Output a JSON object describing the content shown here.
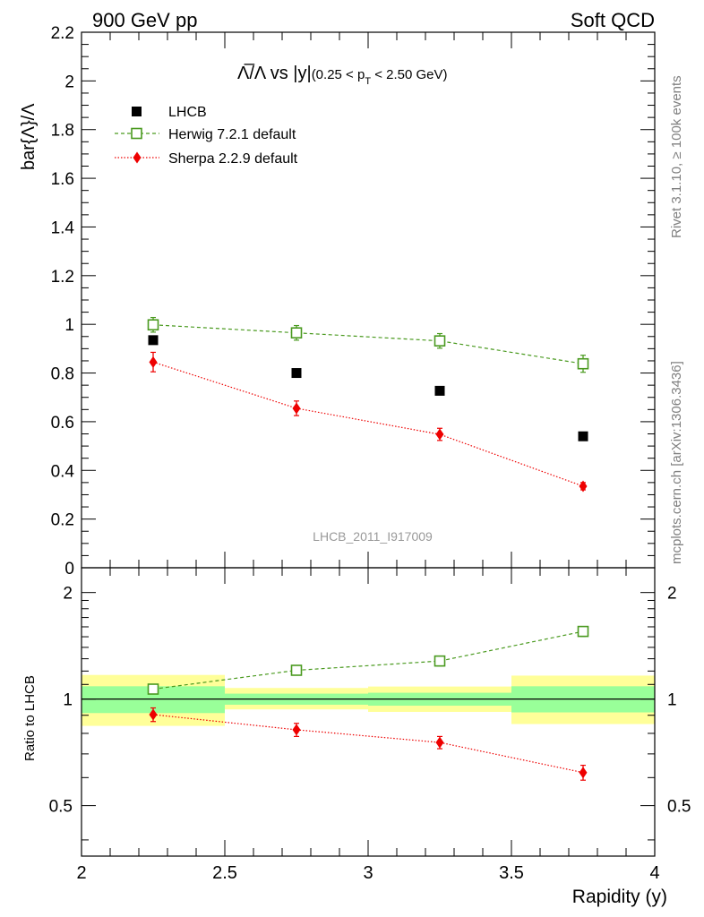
{
  "header": {
    "left": "900 GeV pp",
    "right": "Soft QCD"
  },
  "side_text": {
    "rivet": "Rivet 3.1.10, ≥ 100k events",
    "mcplots": "mcplots.cern.ch [arXiv:1306.3436]"
  },
  "colors": {
    "lhcb": "#000000",
    "herwig": "#4a9a1f",
    "sherpa": "#ee0000",
    "band_outer": "#ffff99",
    "band_inner": "#99ff99"
  },
  "chart_data": [
    {
      "type": "scatter",
      "title": "Λ̅/Λ vs |y|(0.25 < p_T < 2.50 GeV)",
      "title_parts": {
        "main": "Λ̅/Λ vs |y|",
        "cut_open": "(0.25 < p",
        "cut_sub": "T",
        "cut_close": " < 2.50 GeV)"
      },
      "ylabel": "bar{Λ}/Λ",
      "watermark": "LHCB_2011_I917009",
      "xlim": [
        2,
        4
      ],
      "ylim": [
        0,
        2.2
      ],
      "yticks": [
        0,
        0.2,
        0.4,
        0.6,
        0.8,
        1,
        1.2,
        1.4,
        1.6,
        1.8,
        2,
        2.2
      ],
      "ytick_labels": [
        "0",
        "0.2",
        "0.4",
        "0.6",
        "0.8",
        "1",
        "1.2",
        "1.4",
        "1.6",
        "1.8",
        "2",
        "2.2"
      ],
      "legend_position": "top-left",
      "x": [
        2.25,
        2.75,
        3.25,
        3.75
      ],
      "series": [
        {
          "name": "LHCB",
          "values": [
            0.935,
            0.8,
            0.727,
            0.54
          ],
          "errors": [
            0.012,
            0.012,
            0.012,
            0.012
          ],
          "marker": "filled-square",
          "line": "none"
        },
        {
          "name": "Herwig 7.2.1 default",
          "values": [
            0.998,
            0.965,
            0.932,
            0.838
          ],
          "errors": [
            0.03,
            0.03,
            0.03,
            0.035
          ],
          "marker": "open-square",
          "line": "dashed"
        },
        {
          "name": "Sherpa 2.2.9 default",
          "values": [
            0.845,
            0.655,
            0.548,
            0.335
          ],
          "errors": [
            0.04,
            0.03,
            0.025,
            0.015
          ],
          "marker": "diamond",
          "line": "dotted"
        }
      ]
    },
    {
      "type": "scatter",
      "title": "",
      "xlabel": "Rapidity (y)",
      "ylabel": "Ratio to LHCB",
      "xlim": [
        2,
        4
      ],
      "ylim": [
        0.36,
        2.35
      ],
      "scale": "log",
      "xticks": [
        2,
        2.5,
        3,
        3.5,
        4
      ],
      "xtick_labels": [
        "2",
        "2.5",
        "3",
        "3.5",
        "4"
      ],
      "yticks": [
        0.5,
        1,
        2
      ],
      "ytick_labels": [
        "0.5",
        "1",
        "2"
      ],
      "reference_line": 1,
      "bands": [
        {
          "x": [
            2.0,
            2.5
          ],
          "inner": [
            0.913,
            1.087
          ],
          "outer": [
            0.84,
            1.17
          ]
        },
        {
          "x": [
            2.5,
            3.0
          ],
          "inner": [
            0.964,
            1.036
          ],
          "outer": [
            0.935,
            1.075
          ]
        },
        {
          "x": [
            3.0,
            3.5
          ],
          "inner": [
            0.958,
            1.042
          ],
          "outer": [
            0.92,
            1.085
          ]
        },
        {
          "x": [
            3.5,
            4.0
          ],
          "inner": [
            0.917,
            1.087
          ],
          "outer": [
            0.85,
            1.165
          ]
        }
      ],
      "x": [
        2.25,
        2.75,
        3.25,
        3.75
      ],
      "series": [
        {
          "name": "Herwig 7.2.1 default",
          "values": [
            1.067,
            1.206,
            1.281,
            1.553
          ],
          "errors": [
            0.02,
            0.03,
            0.04,
            0.05
          ],
          "marker": "open-square",
          "line": "dashed"
        },
        {
          "name": "Sherpa 2.2.9 default",
          "values": [
            0.904,
            0.819,
            0.754,
            0.62
          ],
          "errors": [
            0.04,
            0.035,
            0.03,
            0.03
          ],
          "marker": "diamond",
          "line": "dotted"
        }
      ]
    }
  ]
}
